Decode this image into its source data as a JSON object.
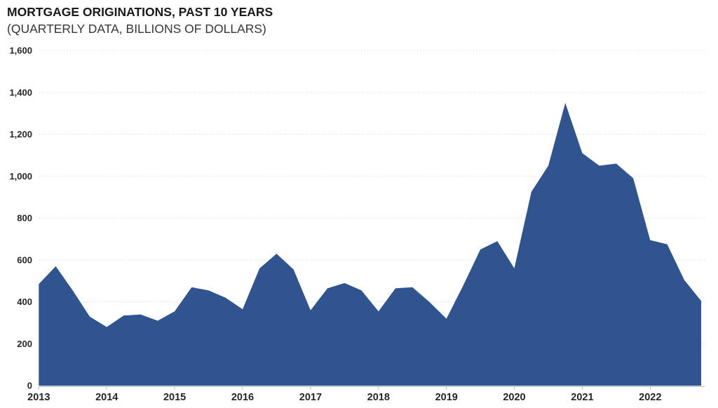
{
  "header": {
    "title": "MORTGAGE ORIGINATIONS, PAST 10 YEARS",
    "subtitle": "(QUARTERLY DATA, BILLIONS OF DOLLARS)"
  },
  "chart_data": {
    "type": "area",
    "title": "MORTGAGE ORIGINATIONS, PAST 10 YEARS",
    "subtitle": "(QUARTERLY DATA, BILLIONS OF DOLLARS)",
    "frequency": "quarterly",
    "unit": "billions of dollars",
    "categories": [
      "2013",
      "2014",
      "2015",
      "2016",
      "2017",
      "2018",
      "2019",
      "2020",
      "2021",
      "2022"
    ],
    "x": [
      "2013 Q1",
      "2013 Q2",
      "2013 Q3",
      "2013 Q4",
      "2014 Q1",
      "2014 Q2",
      "2014 Q3",
      "2014 Q4",
      "2015 Q1",
      "2015 Q2",
      "2015 Q3",
      "2015 Q4",
      "2016 Q1",
      "2016 Q2",
      "2016 Q3",
      "2016 Q4",
      "2017 Q1",
      "2017 Q2",
      "2017 Q3",
      "2017 Q4",
      "2018 Q1",
      "2018 Q2",
      "2018 Q3",
      "2018 Q4",
      "2019 Q1",
      "2019 Q2",
      "2019 Q3",
      "2019 Q4",
      "2020 Q1",
      "2020 Q2",
      "2020 Q3",
      "2020 Q4",
      "2021 Q1",
      "2021 Q2",
      "2021 Q3",
      "2021 Q4",
      "2022 Q1",
      "2022 Q2",
      "2022 Q3",
      "2022 Q4"
    ],
    "series": [
      {
        "name": "Mortgage originations",
        "values": [
          485,
          570,
          455,
          330,
          280,
          335,
          340,
          310,
          355,
          470,
          455,
          420,
          365,
          560,
          630,
          555,
          360,
          465,
          490,
          455,
          355,
          465,
          470,
          400,
          320,
          480,
          650,
          690,
          560,
          925,
          1050,
          1350,
          1110,
          1050,
          1060,
          990,
          695,
          675,
          505,
          405
        ]
      }
    ],
    "ylim": [
      0,
      1600
    ],
    "y_tick_values": [
      0,
      200,
      400,
      600,
      800,
      1000,
      1200,
      1400,
      1600
    ],
    "y_tick_labels": [
      "0",
      "200",
      "400",
      "600",
      "800",
      "1,000",
      "1,200",
      "1,400",
      "1,600"
    ],
    "grid": true,
    "legend": false,
    "colors": {
      "area_fill": "#30548F",
      "gridline": "#D9D9D9",
      "axis_line": "#BFBFBF",
      "label_text": "#262626",
      "title_text": "#1A1A1A"
    }
  }
}
